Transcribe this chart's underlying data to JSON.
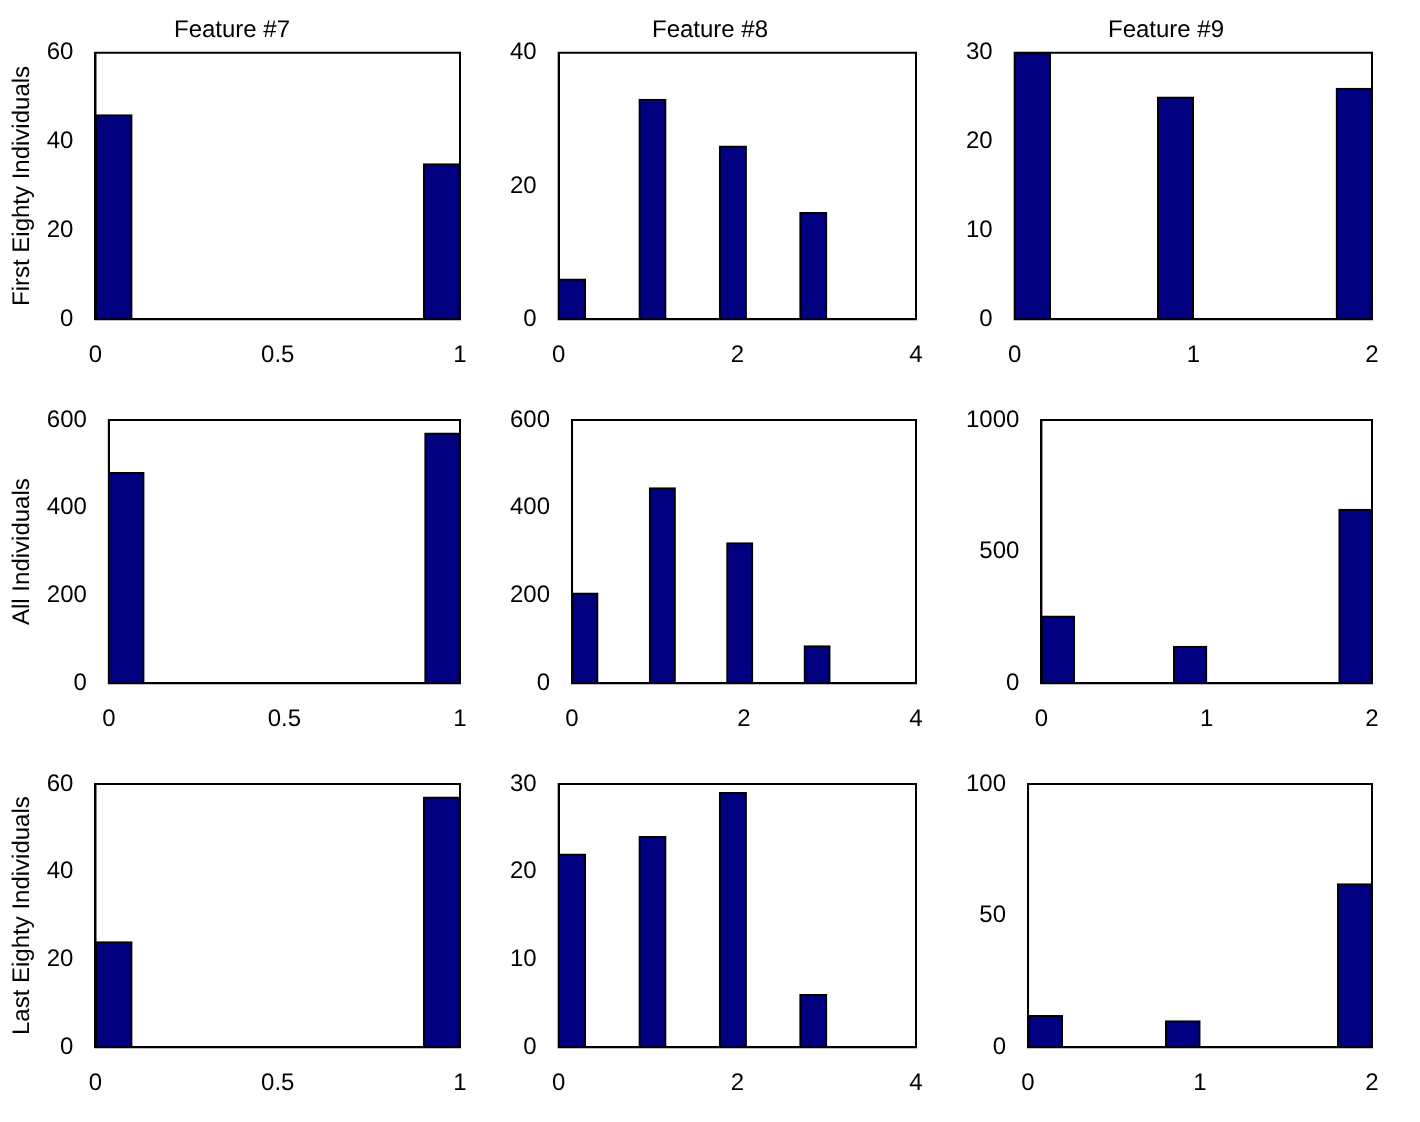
{
  "chart_data": [
    {
      "type": "histogram",
      "title": "Feature #7",
      "ylabel": "First Eighty Individuals",
      "bins": [
        0,
        0.1,
        0.2,
        0.3,
        0.4,
        0.5,
        0.6,
        0.7,
        0.8,
        0.9,
        1
      ],
      "values": [
        46,
        0,
        0,
        0,
        0,
        0,
        0,
        0,
        0,
        35
      ],
      "color": "#000080",
      "xlim": [
        0,
        1
      ],
      "xticks": [
        0,
        0.5,
        1
      ],
      "ylim": [
        0,
        60
      ],
      "yticks": [
        0,
        20,
        40,
        60
      ]
    },
    {
      "type": "histogram",
      "title": "Feature #8",
      "bins": [
        0,
        0.3,
        0.6,
        0.9,
        1.2,
        1.5,
        1.8,
        2.1,
        2.4,
        2.7,
        3
      ],
      "values": [
        6,
        0,
        0,
        33,
        0,
        0,
        26,
        0,
        0,
        16
      ],
      "color": "#000080",
      "xlim": [
        0,
        4
      ],
      "xticks": [
        0,
        2,
        4
      ],
      "ylim": [
        0,
        40
      ],
      "yticks": [
        0,
        20,
        40
      ]
    },
    {
      "type": "histogram",
      "title": "Feature #9",
      "bins": [
        0,
        0.2,
        0.4,
        0.6,
        0.8,
        1,
        1.2,
        1.4,
        1.6,
        1.8,
        2
      ],
      "values": [
        30,
        0,
        0,
        0,
        25,
        0,
        0,
        0,
        0,
        26
      ],
      "color": "#000080",
      "xlim": [
        0,
        2
      ],
      "xticks": [
        0,
        1,
        2
      ],
      "ylim": [
        0,
        30
      ],
      "yticks": [
        0,
        10,
        20,
        30
      ]
    },
    {
      "type": "histogram",
      "ylabel": "All Individuals",
      "bins": [
        0,
        0.1,
        0.2,
        0.3,
        0.4,
        0.5,
        0.6,
        0.7,
        0.8,
        0.9,
        1
      ],
      "values": [
        480,
        0,
        0,
        0,
        0,
        0,
        0,
        0,
        0,
        570
      ],
      "color": "#000080",
      "xlim": [
        0,
        1
      ],
      "xticks": [
        0,
        0.5,
        1
      ],
      "ylim": [
        0,
        600
      ],
      "yticks": [
        0,
        200,
        400,
        600
      ]
    },
    {
      "type": "histogram",
      "bins": [
        0,
        0.3,
        0.6,
        0.9,
        1.2,
        1.5,
        1.8,
        2.1,
        2.4,
        2.7,
        3
      ],
      "values": [
        205,
        0,
        0,
        445,
        0,
        0,
        320,
        0,
        0,
        85
      ],
      "color": "#000080",
      "xlim": [
        0,
        4
      ],
      "xticks": [
        0,
        2,
        4
      ],
      "ylim": [
        0,
        600
      ],
      "yticks": [
        0,
        200,
        400,
        600
      ]
    },
    {
      "type": "histogram",
      "bins": [
        0,
        0.2,
        0.4,
        0.6,
        0.8,
        1,
        1.2,
        1.4,
        1.6,
        1.8,
        2
      ],
      "values": [
        255,
        0,
        0,
        0,
        140,
        0,
        0,
        0,
        0,
        660
      ],
      "color": "#000080",
      "xlim": [
        0,
        2
      ],
      "xticks": [
        0,
        1,
        2
      ],
      "ylim": [
        0,
        1000
      ],
      "yticks": [
        0,
        500,
        1000
      ]
    },
    {
      "type": "histogram",
      "ylabel": "Last Eighty Individuals",
      "bins": [
        0,
        0.1,
        0.2,
        0.3,
        0.4,
        0.5,
        0.6,
        0.7,
        0.8,
        0.9,
        1
      ],
      "values": [
        24,
        0,
        0,
        0,
        0,
        0,
        0,
        0,
        0,
        57
      ],
      "color": "#000080",
      "xlim": [
        0,
        1
      ],
      "xticks": [
        0,
        0.5,
        1
      ],
      "ylim": [
        0,
        60
      ],
      "yticks": [
        0,
        20,
        40,
        60
      ]
    },
    {
      "type": "histogram",
      "bins": [
        0,
        0.3,
        0.6,
        0.9,
        1.2,
        1.5,
        1.8,
        2.1,
        2.4,
        2.7,
        3
      ],
      "values": [
        22,
        0,
        0,
        24,
        0,
        0,
        29,
        0,
        0,
        6
      ],
      "color": "#000080",
      "xlim": [
        0,
        4
      ],
      "xticks": [
        0,
        2,
        4
      ],
      "ylim": [
        0,
        30
      ],
      "yticks": [
        0,
        10,
        20,
        30
      ]
    },
    {
      "type": "histogram",
      "bins": [
        0,
        0.2,
        0.4,
        0.6,
        0.8,
        1,
        1.2,
        1.4,
        1.6,
        1.8,
        2
      ],
      "values": [
        12,
        0,
        0,
        0,
        10,
        0,
        0,
        0,
        0,
        62
      ],
      "color": "#000080",
      "xlim": [
        0,
        2
      ],
      "xticks": [
        0,
        1,
        2
      ],
      "ylim": [
        0,
        100
      ],
      "yticks": [
        0,
        50,
        100
      ]
    }
  ]
}
